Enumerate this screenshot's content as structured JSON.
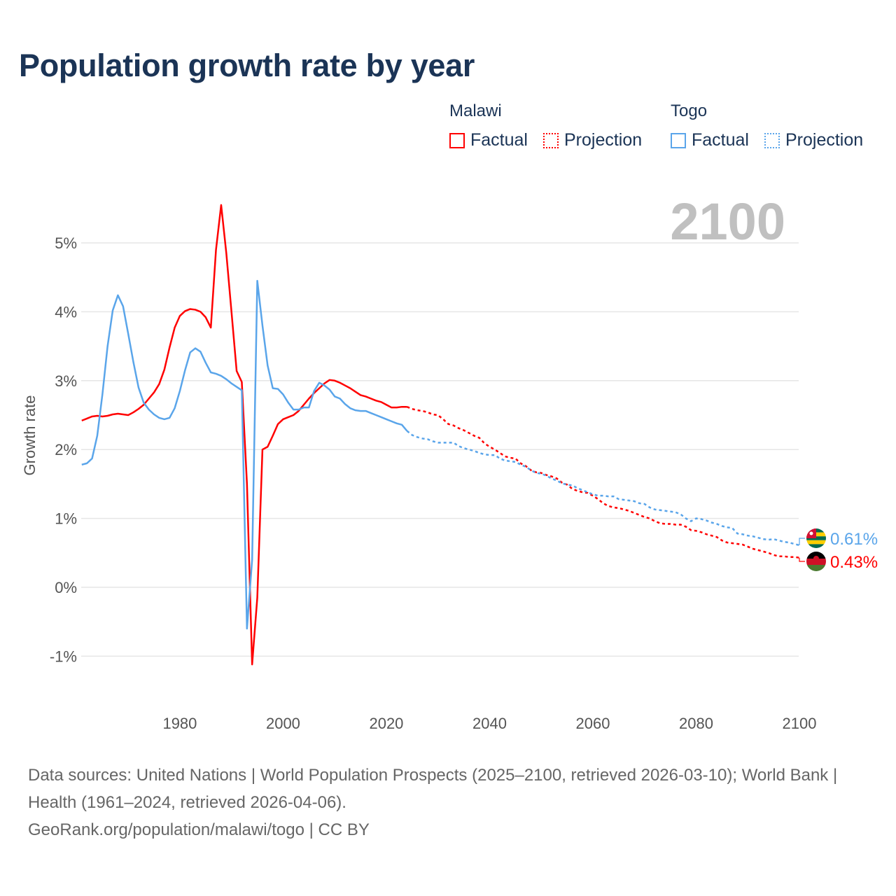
{
  "title": "Population growth rate by year",
  "legend": {
    "groups": [
      {
        "name": "Malawi",
        "factual": "Factual",
        "projection": "Projection",
        "color": "#ff0000"
      },
      {
        "name": "Togo",
        "factual": "Factual",
        "projection": "Projection",
        "color": "#5aa5ea"
      }
    ]
  },
  "footer": {
    "sources": "Data sources: United Nations | World Population Prospects (2025–2100, retrieved 2026-03-10); World Bank | Health (1961–2024, retrieved 2026-04-06).",
    "credit": "GeoRank.org/population/malawi/togo | CC BY"
  },
  "chart_data": {
    "type": "line",
    "title": "Population growth rate by year",
    "xlabel": "",
    "ylabel": "Growth rate",
    "year_display": "2100",
    "xlim": [
      1961,
      2100
    ],
    "ylim": [
      -1.5,
      5.6
    ],
    "x_ticks": [
      1980,
      2000,
      2020,
      2040,
      2060,
      2080,
      2100
    ],
    "y_ticks": [
      -1,
      0,
      1,
      2,
      3,
      4,
      5
    ],
    "y_tick_labels": [
      "-1%",
      "0%",
      "1%",
      "2%",
      "3%",
      "4%",
      "5%"
    ],
    "grid": true,
    "series": [
      {
        "name": "Malawi",
        "color": "#ff0000",
        "end_label": "0.43%",
        "factual_start": 1961,
        "factual": [
          2.42,
          2.45,
          2.48,
          2.49,
          2.48,
          2.49,
          2.51,
          2.52,
          2.51,
          2.5,
          2.54,
          2.59,
          2.65,
          2.74,
          2.83,
          2.95,
          3.16,
          3.48,
          3.77,
          3.94,
          4.01,
          4.04,
          4.03,
          4.0,
          3.92,
          3.77,
          4.9,
          5.55,
          4.85,
          4.0,
          3.14,
          2.98,
          1.5,
          -1.12,
          -0.15,
          2.0,
          2.04,
          2.2,
          2.37,
          2.44,
          2.47,
          2.5,
          2.56,
          2.65,
          2.74,
          2.82,
          2.89,
          2.96,
          3.01,
          3.0,
          2.97,
          2.93,
          2.89,
          2.84,
          2.79,
          2.77,
          2.74,
          2.71,
          2.69,
          2.65,
          2.61,
          2.61,
          2.62,
          2.62
        ],
        "projection_start": 2025,
        "projection": [
          2.59,
          2.57,
          2.56,
          2.54,
          2.51,
          2.5,
          2.44,
          2.37,
          2.35,
          2.31,
          2.28,
          2.24,
          2.2,
          2.17,
          2.09,
          2.04,
          2.0,
          1.95,
          1.9,
          1.88,
          1.87,
          1.8,
          1.76,
          1.7,
          1.67,
          1.66,
          1.63,
          1.61,
          1.58,
          1.52,
          1.49,
          1.43,
          1.4,
          1.38,
          1.37,
          1.33,
          1.28,
          1.22,
          1.18,
          1.16,
          1.15,
          1.13,
          1.11,
          1.08,
          1.05,
          1.02,
          1.0,
          0.96,
          0.93,
          0.92,
          0.92,
          0.91,
          0.91,
          0.88,
          0.83,
          0.82,
          0.8,
          0.77,
          0.75,
          0.73,
          0.68,
          0.65,
          0.64,
          0.63,
          0.62,
          0.59,
          0.56,
          0.54,
          0.52,
          0.5,
          0.47,
          0.45,
          0.45,
          0.44,
          0.44,
          0.43
        ]
      },
      {
        "name": "Togo",
        "color": "#5aa5ea",
        "end_label": "0.61%",
        "factual_start": 1961,
        "factual": [
          1.78,
          1.8,
          1.87,
          2.2,
          2.8,
          3.5,
          4.02,
          4.24,
          4.08,
          3.68,
          3.27,
          2.9,
          2.68,
          2.58,
          2.51,
          2.46,
          2.44,
          2.46,
          2.6,
          2.85,
          3.15,
          3.41,
          3.47,
          3.42,
          3.26,
          3.12,
          3.1,
          3.07,
          3.02,
          2.96,
          2.91,
          2.86,
          -0.6,
          0.4,
          4.45,
          3.8,
          3.22,
          2.89,
          2.88,
          2.8,
          2.68,
          2.58,
          2.58,
          2.61,
          2.61,
          2.85,
          2.97,
          2.93,
          2.87,
          2.77,
          2.74,
          2.66,
          2.6,
          2.57,
          2.56,
          2.56,
          2.53,
          2.5,
          2.47,
          2.44,
          2.41,
          2.38,
          2.36,
          2.27
        ],
        "projection_start": 2025,
        "projection": [
          2.21,
          2.18,
          2.16,
          2.15,
          2.12,
          2.1,
          2.1,
          2.1,
          2.1,
          2.05,
          2.02,
          2.0,
          1.98,
          1.95,
          1.93,
          1.92,
          1.92,
          1.87,
          1.84,
          1.83,
          1.82,
          1.78,
          1.75,
          1.7,
          1.66,
          1.65,
          1.62,
          1.58,
          1.55,
          1.51,
          1.49,
          1.48,
          1.44,
          1.41,
          1.38,
          1.35,
          1.33,
          1.33,
          1.32,
          1.32,
          1.28,
          1.27,
          1.26,
          1.25,
          1.22,
          1.21,
          1.16,
          1.13,
          1.12,
          1.11,
          1.1,
          1.09,
          1.06,
          1.0,
          0.96,
          1.0,
          0.99,
          0.97,
          0.94,
          0.92,
          0.89,
          0.87,
          0.86,
          0.78,
          0.77,
          0.75,
          0.74,
          0.72,
          0.7,
          0.69,
          0.7,
          0.68,
          0.66,
          0.65,
          0.63,
          0.61
        ]
      }
    ]
  }
}
